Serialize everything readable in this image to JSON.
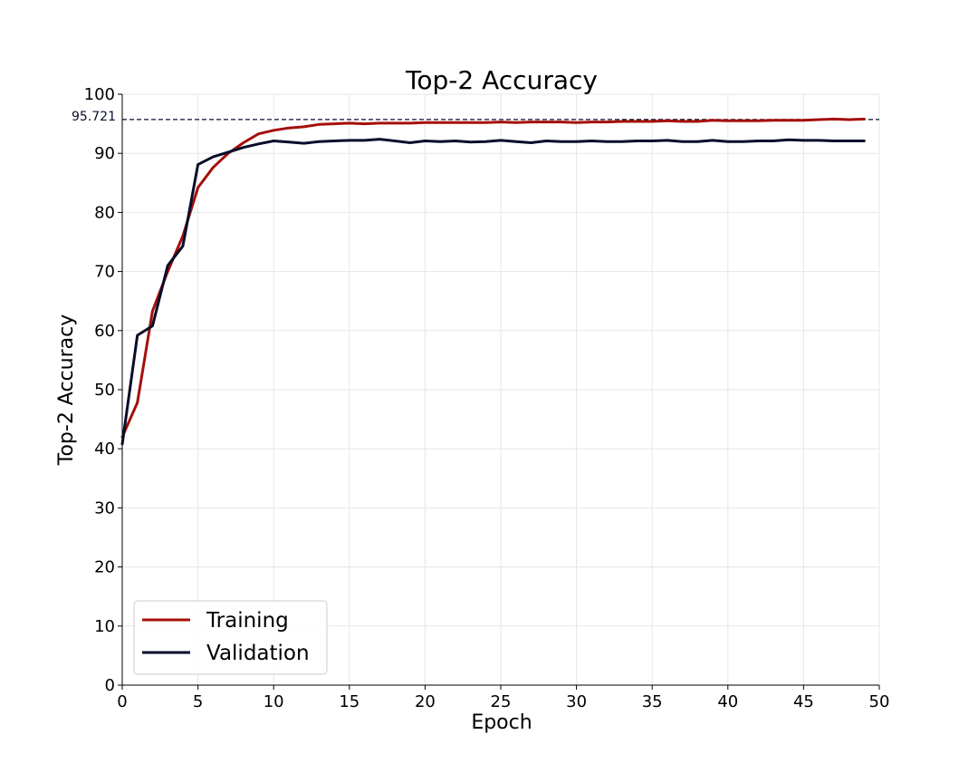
{
  "chart_data": {
    "type": "line",
    "title": "Top-2 Accuracy",
    "xlabel": "Epoch",
    "ylabel": "Top-2 Accuracy",
    "xlim": [
      0,
      50
    ],
    "ylim": [
      0,
      100
    ],
    "xticks": [
      0,
      5,
      10,
      15,
      20,
      25,
      30,
      35,
      40,
      45,
      50
    ],
    "yticks": [
      0,
      10,
      20,
      30,
      40,
      50,
      60,
      70,
      80,
      90,
      100
    ],
    "grid": true,
    "legend_position": "bottom-left",
    "reference_line": {
      "value": 95.721,
      "label": "95.721",
      "color": "#0a0f2e",
      "style": "dashed"
    },
    "x": [
      0,
      1,
      2,
      3,
      4,
      5,
      6,
      7,
      8,
      9,
      10,
      11,
      12,
      13,
      14,
      15,
      16,
      17,
      18,
      19,
      20,
      21,
      22,
      23,
      24,
      25,
      26,
      27,
      28,
      29,
      30,
      31,
      32,
      33,
      34,
      35,
      36,
      37,
      38,
      39,
      40,
      41,
      42,
      43,
      44,
      45,
      46,
      47,
      48,
      49
    ],
    "series": [
      {
        "name": "Training",
        "color": "#a50f0a",
        "values": [
          42.0,
          47.8,
          63.3,
          70.0,
          76.0,
          84.2,
          87.6,
          90.0,
          91.8,
          93.3,
          93.9,
          94.3,
          94.5,
          94.9,
          95.0,
          95.1,
          95.0,
          95.1,
          95.1,
          95.1,
          95.2,
          95.2,
          95.2,
          95.2,
          95.2,
          95.3,
          95.2,
          95.3,
          95.3,
          95.3,
          95.2,
          95.3,
          95.3,
          95.4,
          95.4,
          95.4,
          95.5,
          95.4,
          95.4,
          95.6,
          95.5,
          95.5,
          95.5,
          95.6,
          95.6,
          95.6,
          95.7,
          95.8,
          95.7,
          95.8
        ]
      },
      {
        "name": "Validation",
        "color": "#070d2b",
        "values": [
          40.8,
          59.2,
          60.8,
          71.0,
          74.3,
          88.1,
          89.4,
          90.2,
          91.0,
          91.6,
          92.1,
          91.9,
          91.7,
          92.0,
          92.1,
          92.2,
          92.2,
          92.4,
          92.1,
          91.8,
          92.1,
          92.0,
          92.1,
          91.9,
          92.0,
          92.2,
          92.0,
          91.8,
          92.1,
          92.0,
          92.0,
          92.1,
          92.0,
          92.0,
          92.1,
          92.1,
          92.2,
          92.0,
          92.0,
          92.2,
          92.0,
          92.0,
          92.1,
          92.1,
          92.3,
          92.2,
          92.2,
          92.1,
          92.1,
          92.1
        ]
      }
    ]
  }
}
